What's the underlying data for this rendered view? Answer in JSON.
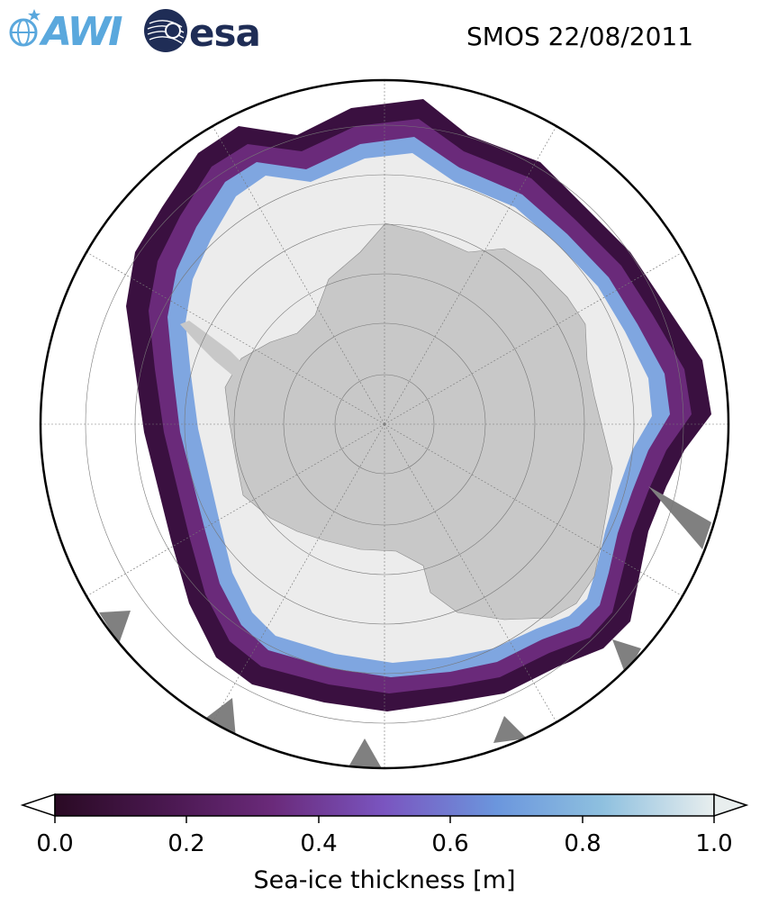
{
  "header": {
    "awi_logo_text": "AWI",
    "esa_logo_text": "esa",
    "title": "SMOS 22/08/2011"
  },
  "map": {
    "projection": "south-polar-stereographic",
    "layers": [
      "ocean",
      "sea-ice-thickness",
      "ice-shelf",
      "antarctica-land",
      "graticule"
    ],
    "colors": {
      "land": "#c8c8c8",
      "thick_ice": "#ececec",
      "no_data": "#808080",
      "ocean": "#ffffff"
    }
  },
  "colorbar": {
    "label": "Sea-ice thickness [m]",
    "ticks": [
      "0.0",
      "0.2",
      "0.4",
      "0.6",
      "0.8",
      "1.0"
    ],
    "range": [
      0.0,
      1.0
    ],
    "extend": "both",
    "colors": [
      "#2a0a24",
      "#4a1850",
      "#6a2a7a",
      "#7a55c0",
      "#6b96dd",
      "#8ec0df",
      "#e8eeee"
    ]
  }
}
